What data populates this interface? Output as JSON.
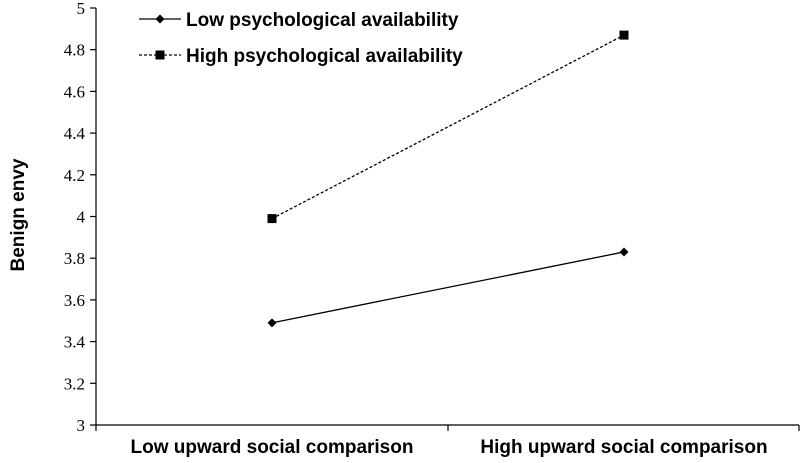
{
  "chart_data": {
    "type": "line",
    "categories": [
      "Low upward social comparison",
      "High upward social comparison"
    ],
    "series": [
      {
        "name": "Low psychological availability",
        "values": [
          3.49,
          3.83
        ],
        "line_style": "solid",
        "marker": "diamond"
      },
      {
        "name": "High psychological availability",
        "values": [
          3.99,
          4.87
        ],
        "line_style": "dashed",
        "marker": "square"
      }
    ],
    "title": "",
    "xlabel": "",
    "ylabel": "Benign envy",
    "ylim": [
      3,
      5
    ],
    "yticks": [
      "3",
      "3.2",
      "3.4",
      "3.6",
      "3.8",
      "4",
      "4.2",
      "4.4",
      "4.6",
      "4.8",
      "5"
    ],
    "grid": false,
    "legend_position": "top-left",
    "colors": {
      "line": "#000000",
      "background": "#ffffff"
    }
  }
}
